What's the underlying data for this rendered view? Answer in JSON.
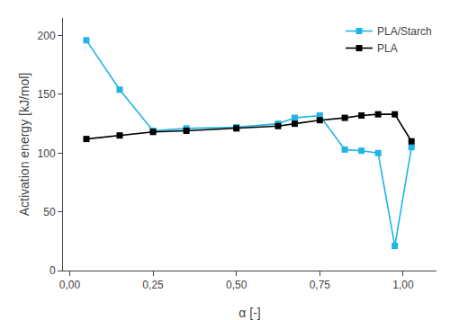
{
  "chart_data": {
    "type": "line",
    "x": [
      0.05,
      0.15,
      0.25,
      0.35,
      0.5,
      0.625,
      0.675,
      0.75,
      0.825,
      0.875,
      0.925,
      0.975,
      1.025
    ],
    "series": [
      {
        "name": "PLA/Starch",
        "color": "#1EB4E6",
        "values": [
          196,
          154,
          119,
          121,
          122,
          125,
          130,
          132,
          103,
          102,
          100,
          21,
          105
        ]
      },
      {
        "name": "PLA",
        "color": "#000000",
        "values": [
          112,
          115,
          118,
          119,
          121,
          123,
          125,
          128,
          130,
          132,
          133,
          133,
          110
        ]
      }
    ],
    "x_label": "α [-]",
    "y_label": "Activation energy [kJ/mol]",
    "xlim": [
      -0.02,
      1.1
    ],
    "ylim": [
      0,
      215
    ],
    "xticks": [
      {
        "value": 0.0,
        "label": "0,00"
      },
      {
        "value": 0.25,
        "label": "0,25"
      },
      {
        "value": 0.5,
        "label": "0,50"
      },
      {
        "value": 0.75,
        "label": "0,75"
      },
      {
        "value": 1.0,
        "label": "1,00"
      }
    ],
    "yticks": [
      0,
      50,
      100,
      150,
      200
    ],
    "marker": "square",
    "line_style": "solid",
    "legend": "upper right",
    "grid": false
  }
}
